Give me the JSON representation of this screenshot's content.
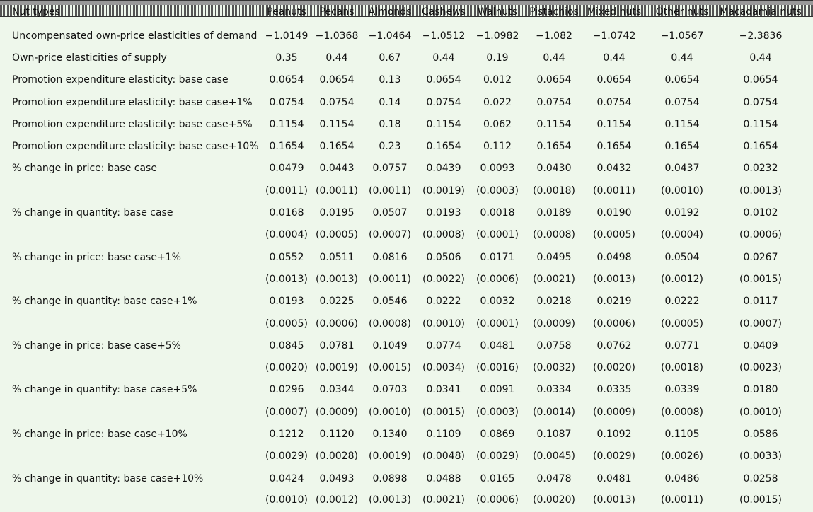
{
  "table": {
    "header": [
      "Nut types",
      "Peanuts",
      "Pecans",
      "Almonds",
      "Cashews",
      "Walnuts",
      "Pistachios",
      "Mixed nuts",
      "Other nuts",
      "Macadamia nuts"
    ],
    "rows": [
      {
        "label": "Uncompensated own-price elasticities of demand",
        "values": [
          "−1.0149",
          "−1.0368",
          "−1.0464",
          "−1.0512",
          "−1.0982",
          "−1.082",
          "−1.0742",
          "−1.0567",
          "−2.3836"
        ]
      },
      {
        "label": "Own-price elasticities of supply",
        "values": [
          "0.35",
          "0.44",
          "0.67",
          "0.44",
          "0.19",
          "0.44",
          "0.44",
          "0.44",
          "0.44"
        ]
      },
      {
        "label": "Promotion expenditure elasticity: base case",
        "values": [
          "0.0654",
          "0.0654",
          "0.13",
          "0.0654",
          "0.012",
          "0.0654",
          "0.0654",
          "0.0654",
          "0.0654"
        ]
      },
      {
        "label": "Promotion expenditure elasticity: base case+1%",
        "values": [
          "0.0754",
          "0.0754",
          "0.14",
          "0.0754",
          "0.022",
          "0.0754",
          "0.0754",
          "0.0754",
          "0.0754"
        ]
      },
      {
        "label": "Promotion expenditure elasticity: base case+5%",
        "values": [
          "0.1154",
          "0.1154",
          "0.18",
          "0.1154",
          "0.062",
          "0.1154",
          "0.1154",
          "0.1154",
          "0.1154"
        ]
      },
      {
        "label": "Promotion expenditure elasticity: base case+10%",
        "values": [
          "0.1654",
          "0.1654",
          "0.23",
          "0.1654",
          "0.112",
          "0.1654",
          "0.1654",
          "0.1654",
          "0.1654"
        ]
      },
      {
        "label": "% change in price: base case",
        "values": [
          "0.0479",
          "0.0443",
          "0.0757",
          "0.0439",
          "0.0093",
          "0.0430",
          "0.0432",
          "0.0437",
          "0.0232"
        ],
        "errors": [
          "(0.0011)",
          "(0.0011)",
          "(0.0011)",
          "(0.0019)",
          "(0.0003)",
          "(0.0018)",
          "(0.0011)",
          "(0.0010)",
          "(0.0013)"
        ]
      },
      {
        "label": "% change in quantity: base case",
        "values": [
          "0.0168",
          "0.0195",
          "0.0507",
          "0.0193",
          "0.0018",
          "0.0189",
          "0.0190",
          "0.0192",
          "0.0102"
        ],
        "errors": [
          "(0.0004)",
          "(0.0005)",
          "(0.0007)",
          "(0.0008)",
          "(0.0001)",
          "(0.0008)",
          "(0.0005)",
          "(0.0004)",
          "(0.0006)"
        ]
      },
      {
        "label": "% change in price: base case+1%",
        "values": [
          "0.0552",
          "0.0511",
          "0.0816",
          "0.0506",
          "0.0171",
          "0.0495",
          "0.0498",
          "0.0504",
          "0.0267"
        ],
        "errors": [
          "(0.0013)",
          "(0.0013)",
          "(0.0011)",
          "(0.0022)",
          "(0.0006)",
          "(0.0021)",
          "(0.0013)",
          "(0.0012)",
          "(0.0015)"
        ]
      },
      {
        "label": "% change in quantity: base case+1%",
        "values": [
          "0.0193",
          "0.0225",
          "0.0546",
          "0.0222",
          "0.0032",
          "0.0218",
          "0.0219",
          "0.0222",
          "0.0117"
        ],
        "errors": [
          "(0.0005)",
          "(0.0006)",
          "(0.0008)",
          "(0.0010)",
          "(0.0001)",
          "(0.0009)",
          "(0.0006)",
          "(0.0005)",
          "(0.0007)"
        ]
      },
      {
        "label": "% change in price: base case+5%",
        "values": [
          "0.0845",
          "0.0781",
          "0.1049",
          "0.0774",
          "0.0481",
          "0.0758",
          "0.0762",
          "0.0771",
          "0.0409"
        ],
        "errors": [
          "(0.0020)",
          "(0.0019)",
          "(0.0015)",
          "(0.0034)",
          "(0.0016)",
          "(0.0032)",
          "(0.0020)",
          "(0.0018)",
          "(0.0023)"
        ]
      },
      {
        "label": "% change in quantity: base case+5%",
        "values": [
          "0.0296",
          "0.0344",
          "0.0703",
          "0.0341",
          "0.0091",
          "0.0334",
          "0.0335",
          "0.0339",
          "0.0180"
        ],
        "errors": [
          "(0.0007)",
          "(0.0009)",
          "(0.0010)",
          "(0.0015)",
          "(0.0003)",
          "(0.0014)",
          "(0.0009)",
          "(0.0008)",
          "(0.0010)"
        ]
      },
      {
        "label": "% change in price: base case+10%",
        "values": [
          "0.1212",
          "0.1120",
          "0.1340",
          "0.1109",
          "0.0869",
          "0.1087",
          "0.1092",
          "0.1105",
          "0.0586"
        ],
        "errors": [
          "(0.0029)",
          "(0.0028)",
          "(0.0019)",
          "(0.0048)",
          "(0.0029)",
          "(0.0045)",
          "(0.0029)",
          "(0.0026)",
          "(0.0033)"
        ]
      },
      {
        "label": "% change in quantity: base case+10%",
        "values": [
          "0.0424",
          "0.0493",
          "0.0898",
          "0.0488",
          "0.0165",
          "0.0478",
          "0.0481",
          "0.0486",
          "0.0258"
        ],
        "errors": [
          "(0.0010)",
          "(0.0012)",
          "(0.0013)",
          "(0.0021)",
          "(0.0006)",
          "(0.0020)",
          "(0.0013)",
          "(0.0011)",
          "(0.0015)"
        ]
      }
    ]
  }
}
